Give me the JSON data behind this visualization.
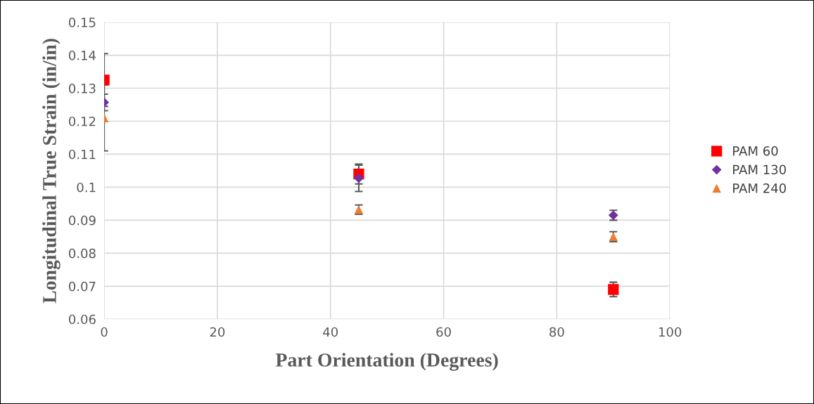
{
  "chart_data": {
    "type": "scatter",
    "xlabel": "Part Orientation (Degrees)",
    "ylabel": "Longitudinal True Strain (in/in)",
    "x": [
      0,
      45,
      90
    ],
    "series": [
      {
        "name": "PAM 60",
        "color": "#ff0000",
        "marker": "square",
        "values": [
          0.1325,
          0.104,
          0.069
        ],
        "errors": [
          0.008,
          0.003,
          0.0022
        ]
      },
      {
        "name": "PAM 130",
        "color": "#7030a0",
        "marker": "diamond",
        "values": [
          0.1257,
          0.1027,
          0.0915
        ],
        "errors": [
          0.0025,
          0.004,
          0.0015
        ]
      },
      {
        "name": "PAM 240",
        "color": "#ed7d31",
        "marker": "triangle",
        "values": [
          0.121,
          0.0932,
          0.085
        ],
        "errors": [
          0.01,
          0.0014,
          0.0015
        ]
      }
    ],
    "xlim": [
      0,
      100
    ],
    "xticks": [
      0,
      20,
      40,
      60,
      80,
      100
    ],
    "ylim": [
      0.06,
      0.15
    ],
    "yticks": [
      0.06,
      0.07,
      0.08,
      0.09,
      0.1,
      0.11,
      0.12,
      0.13,
      0.14,
      0.15
    ],
    "grid": true,
    "legend": "right"
  }
}
